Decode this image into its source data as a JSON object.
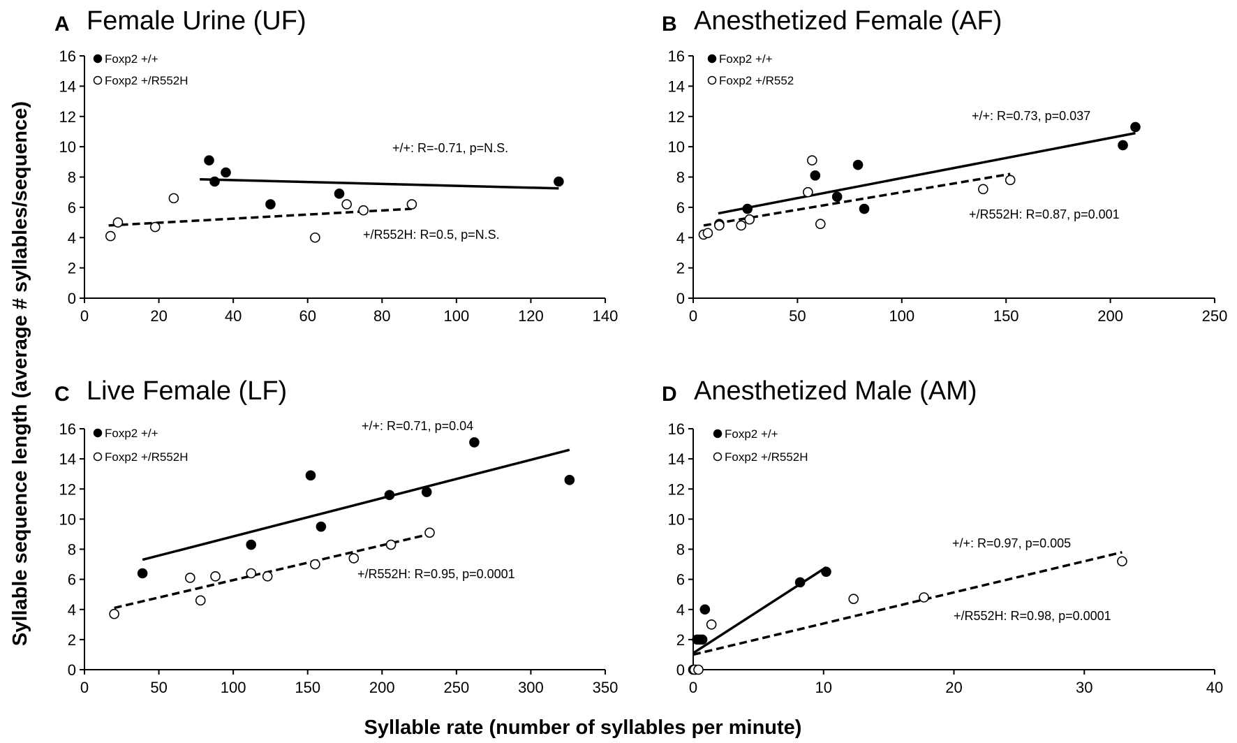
{
  "figure": {
    "ylabel": "Syllable sequence length (average # syllables/sequence)",
    "xlabel": "Syllable rate (number of syllables per minute)"
  },
  "colors": {
    "foreground": "#000000",
    "background": "#ffffff"
  },
  "chart_data": [
    {
      "panel": "A",
      "title": "Female Urine (UF)",
      "type": "scatter",
      "xlim": [
        0,
        140
      ],
      "ylim": [
        0,
        16
      ],
      "xticks": [
        0,
        20,
        40,
        60,
        80,
        100,
        120,
        140
      ],
      "yticks": [
        0,
        2,
        4,
        6,
        8,
        10,
        12,
        14,
        16
      ],
      "series": [
        {
          "name": "Foxp2 +/+",
          "marker": "filled",
          "points": [
            [
              33.5,
              9.1
            ],
            [
              38,
              8.3
            ],
            [
              35,
              7.7
            ],
            [
              50,
              6.2
            ],
            [
              68.5,
              6.9
            ],
            [
              127.5,
              7.7
            ]
          ],
          "fit": {
            "x": [
              31,
              127.5
            ],
            "y": [
              7.85,
              7.25
            ],
            "style": "solid"
          },
          "annotation": "+/+: R=-0.71, p=N.S."
        },
        {
          "name": "Foxp2 +/R552H",
          "marker": "open",
          "points": [
            [
              7,
              4.1
            ],
            [
              9,
              5.0
            ],
            [
              19,
              4.7
            ],
            [
              24,
              6.6
            ],
            [
              62,
              4.0
            ],
            [
              70.5,
              6.2
            ],
            [
              75,
              5.8
            ],
            [
              88,
              6.2
            ]
          ],
          "fit": {
            "x": [
              6.5,
              88
            ],
            "y": [
              4.8,
              5.9
            ],
            "style": "dashed"
          },
          "annotation": "+/R552H: R=0.5, p=N.S."
        }
      ]
    },
    {
      "panel": "B",
      "title": "Anesthetized Female (AF)",
      "type": "scatter",
      "xlim": [
        0,
        250
      ],
      "ylim": [
        0,
        16
      ],
      "xticks": [
        0,
        50,
        100,
        150,
        200,
        250
      ],
      "yticks": [
        0,
        2,
        4,
        6,
        8,
        10,
        12,
        14,
        16
      ],
      "series": [
        {
          "name": "Foxp2 +/+",
          "marker": "filled",
          "points": [
            [
              12.5,
              4.9
            ],
            [
              26,
              5.9
            ],
            [
              58.5,
              8.1
            ],
            [
              69,
              6.7
            ],
            [
              79,
              8.8
            ],
            [
              82,
              5.9
            ],
            [
              206,
              10.1
            ],
            [
              212,
              11.3
            ]
          ],
          "fit": {
            "x": [
              12,
              212
            ],
            "y": [
              5.6,
              10.9
            ],
            "style": "solid"
          },
          "annotation": "+/+: R=0.73, p=0.037"
        },
        {
          "name": "Foxp2 +/R552",
          "marker": "open",
          "points": [
            [
              5,
              4.2
            ],
            [
              7,
              4.3
            ],
            [
              12.5,
              4.8
            ],
            [
              23,
              4.8
            ],
            [
              27,
              5.2
            ],
            [
              55,
              7.0
            ],
            [
              57,
              9.1
            ],
            [
              61,
              4.9
            ],
            [
              139,
              7.2
            ],
            [
              152,
              7.8
            ]
          ],
          "fit": {
            "x": [
              5,
              152
            ],
            "y": [
              4.8,
              8.2
            ],
            "style": "dashed"
          },
          "annotation": "+/R552H: R=0.87, p=0.001"
        }
      ]
    },
    {
      "panel": "C",
      "title": "Live Female (LF)",
      "type": "scatter",
      "xlim": [
        0,
        350
      ],
      "ylim": [
        0,
        16
      ],
      "xticks": [
        0,
        50,
        100,
        150,
        200,
        250,
        300,
        350
      ],
      "yticks": [
        0,
        2,
        4,
        6,
        8,
        10,
        12,
        14,
        16
      ],
      "series": [
        {
          "name": "Foxp2 +/+",
          "marker": "filled",
          "points": [
            [
              39,
              6.4
            ],
            [
              112,
              8.3
            ],
            [
              152,
              12.9
            ],
            [
              159,
              9.5
            ],
            [
              205,
              11.6
            ],
            [
              230,
              11.8
            ],
            [
              262,
              15.1
            ],
            [
              326,
              12.6
            ]
          ],
          "fit": {
            "x": [
              39,
              326
            ],
            "y": [
              7.3,
              14.6
            ],
            "style": "solid"
          },
          "annotation": "+/+: R=0.71, p=0.04"
        },
        {
          "name": "Foxp2 +/R552H",
          "marker": "open",
          "points": [
            [
              20,
              3.7
            ],
            [
              71,
              6.1
            ],
            [
              78,
              4.6
            ],
            [
              88,
              6.2
            ],
            [
              112,
              6.4
            ],
            [
              123,
              6.2
            ],
            [
              155,
              7.0
            ],
            [
              181,
              7.4
            ],
            [
              206,
              8.3
            ],
            [
              232,
              9.1
            ]
          ],
          "fit": {
            "x": [
              20,
              232
            ],
            "y": [
              4.1,
              9.0
            ],
            "style": "dashed"
          },
          "annotation": "+/R552H: R=0.95, p=0.0001"
        }
      ]
    },
    {
      "panel": "D",
      "title": "Anesthetized Male (AM)",
      "type": "scatter",
      "xlim": [
        0,
        40
      ],
      "ylim": [
        0,
        16
      ],
      "xticks": [
        0,
        10,
        20,
        30,
        40
      ],
      "yticks": [
        0,
        2,
        4,
        6,
        8,
        10,
        12,
        14,
        16
      ],
      "series": [
        {
          "name": "Foxp2 +/+",
          "marker": "filled",
          "points": [
            [
              0,
              0
            ],
            [
              0.2,
              0
            ],
            [
              0.3,
              2.0
            ],
            [
              0.5,
              2.0
            ],
            [
              0.7,
              2.0
            ],
            [
              0.9,
              4.0
            ],
            [
              8.2,
              5.8
            ],
            [
              10.2,
              6.5
            ]
          ],
          "fit": {
            "x": [
              0,
              10.2
            ],
            "y": [
              1.1,
              6.8
            ],
            "style": "solid"
          },
          "annotation": "+/+: R=0.97, p=0.005"
        },
        {
          "name": "Foxp2 +/R552H",
          "marker": "open",
          "points": [
            [
              0.1,
              0
            ],
            [
              0.4,
              0
            ],
            [
              1.4,
              3.0
            ],
            [
              12.3,
              4.7
            ],
            [
              17.7,
              4.8
            ],
            [
              32.9,
              7.2
            ]
          ],
          "fit": {
            "x": [
              0,
              32.9
            ],
            "y": [
              1.0,
              7.8
            ],
            "style": "dashed"
          },
          "annotation": "+/R552H: R=0.98, p=0.0001"
        }
      ]
    }
  ]
}
